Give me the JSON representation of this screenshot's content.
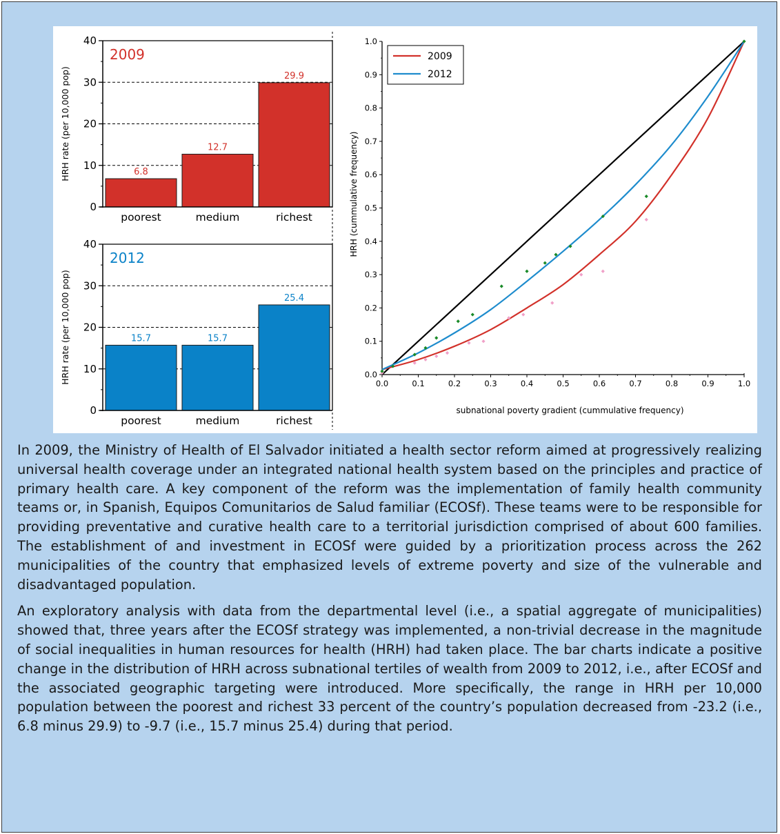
{
  "chart_data": [
    {
      "type": "bar",
      "title": "2009",
      "categories": [
        "poorest",
        "medium",
        "richest"
      ],
      "values": [
        6.8,
        12.7,
        29.9
      ],
      "data_labels": [
        "6.8",
        "12.7",
        "29.9"
      ],
      "ylabel": "HRH rate (per 10,000 pop)",
      "ylim": [
        0,
        40
      ],
      "yticks": [
        "0",
        "10",
        "20",
        "30",
        "40"
      ],
      "grid": "dashed at 10, 20, 30",
      "color": "#d2312a"
    },
    {
      "type": "bar",
      "title": "2012",
      "categories": [
        "poorest",
        "medium",
        "richest"
      ],
      "values": [
        15.7,
        15.7,
        25.4
      ],
      "data_labels": [
        "15.7",
        "15.7",
        "25.4"
      ],
      "ylabel": "HRH rate (per 10,000 pop)",
      "ylim": [
        0,
        40
      ],
      "yticks": [
        "0",
        "10",
        "20",
        "30",
        "40"
      ],
      "grid": "dashed at 10, 20, 30",
      "color": "#0a82c8"
    },
    {
      "type": "line",
      "xlabel": "subnational poverty gradient (cummulative frequency)",
      "ylabel": "HRH (cummulative frequency)",
      "xlim": [
        0,
        1
      ],
      "ylim": [
        0,
        1
      ],
      "xticks": [
        "0.0",
        "0.1",
        "0.2",
        "0.3",
        "0.4",
        "0.5",
        "0.6",
        "0.7",
        "0.8",
        "0.9",
        "1.0"
      ],
      "yticks": [
        "0.0",
        "0.1",
        "0.2",
        "0.3",
        "0.4",
        "0.5",
        "0.6",
        "0.7",
        "0.8",
        "0.9",
        "1.0"
      ],
      "legend_position": "top-left",
      "equality_line": {
        "x": [
          0,
          1
        ],
        "y": [
          0,
          1
        ],
        "color": "#000000"
      },
      "series": [
        {
          "name": "2009",
          "color": "#d2312a",
          "point_color": "#f0a0c8",
          "curve_x": [
            0,
            0.1,
            0.2,
            0.3,
            0.4,
            0.5,
            0.6,
            0.7,
            0.8,
            0.9,
            1.0
          ],
          "curve_y": [
            0.015,
            0.045,
            0.085,
            0.135,
            0.2,
            0.27,
            0.36,
            0.46,
            0.6,
            0.77,
            1.0
          ],
          "points_x": [
            0.0,
            0.09,
            0.12,
            0.15,
            0.18,
            0.24,
            0.28,
            0.35,
            0.39,
            0.47,
            0.55,
            0.61,
            0.73
          ],
          "points_y": [
            0.005,
            0.035,
            0.045,
            0.055,
            0.065,
            0.095,
            0.1,
            0.17,
            0.18,
            0.215,
            0.3,
            0.31,
            0.465
          ]
        },
        {
          "name": "2012",
          "color": "#1e8ccd",
          "point_color": "#1a8a28",
          "curve_x": [
            0,
            0.1,
            0.2,
            0.3,
            0.4,
            0.5,
            0.6,
            0.7,
            0.8,
            0.9,
            1.0
          ],
          "curve_y": [
            0.015,
            0.065,
            0.125,
            0.195,
            0.28,
            0.37,
            0.465,
            0.57,
            0.69,
            0.835,
            1.0
          ],
          "points_x": [
            0.0,
            0.03,
            0.09,
            0.12,
            0.15,
            0.21,
            0.25,
            0.33,
            0.4,
            0.45,
            0.48,
            0.52,
            0.61,
            0.73,
            1.0
          ],
          "points_y": [
            0.01,
            0.025,
            0.06,
            0.08,
            0.11,
            0.16,
            0.18,
            0.265,
            0.31,
            0.335,
            0.36,
            0.385,
            0.475,
            0.535,
            1.0
          ]
        }
      ]
    }
  ],
  "caption": {
    "paragraphs": [
      "In 2009, the Ministry of Health of El Salvador initiated a health sector reform aimed at progressively realizing universal health coverage under an integrated national health system based on the principles and practice of primary health care. A key component of the reform was the implementation of family health community teams or, in Spanish, Equipos Comunitarios de Salud familiar (ECOSf). These teams were to be responsible for providing preventative and curative health care to a territorial jurisdiction comprised of about 600 families. The establishment of and investment in ECOSf were guided by a prioritization process across the 262 municipalities of the country that emphasized levels of extreme poverty and size of the vulnerable and disadvantaged population.",
      "An exploratory analysis with data from the departmental level (i.e., a spatial aggregate of municipalities) showed that, three years after the ECOSf strategy was implemented, a non-trivial decrease in the magnitude of social inequalities in human resources for health (HRH) had taken place. The bar charts indicate a positive change in the distribution of HRH across subnational tertiles of wealth from 2009 to 2012, i.e., after ECOSf and the associated geographic targeting were introduced. More specifically, the range in HRH per 10,000 population between the poorest and richest 33 percent of the country’s population decreased from -23.2 (i.e., 6.8 minus 29.9) to -9.7 (i.e., 15.7 minus 25.4) during that period."
    ]
  }
}
